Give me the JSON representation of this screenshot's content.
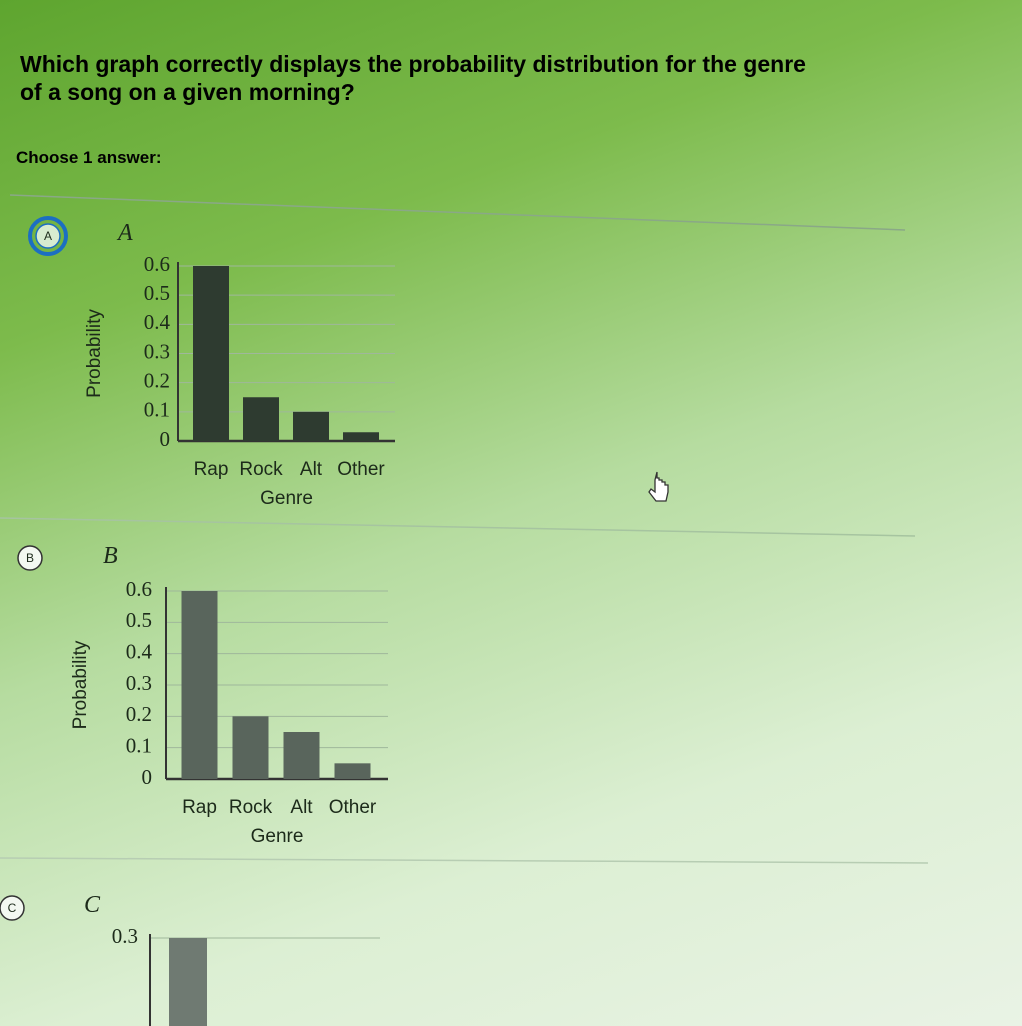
{
  "question": "Which graph correctly displays the probability distribution for the genre of a song on a given morning?",
  "instruction": "Choose 1 answer:",
  "choices": [
    {
      "letter": "A",
      "chart": {
        "type": "bar",
        "title": "A",
        "ylabel": "Probability",
        "xlabel": "Genre",
        "categories": [
          "Rap",
          "Rock",
          "Alt",
          "Other"
        ],
        "values": [
          0.6,
          0.15,
          0.1,
          0.03
        ],
        "color": "#2e3b30",
        "ylim": [
          0,
          0.6
        ],
        "yticks": [
          0,
          0.1,
          0.2,
          0.3,
          0.4,
          0.5,
          0.6
        ],
        "grid": true
      }
    },
    {
      "letter": "B",
      "chart": {
        "type": "bar",
        "title": "B",
        "ylabel": "Probability",
        "xlabel": "Genre",
        "categories": [
          "Rap",
          "Rock",
          "Alt",
          "Other"
        ],
        "values": [
          0.6,
          0.2,
          0.15,
          0.05
        ],
        "color": "#59655c",
        "ylim": [
          0,
          0.6
        ],
        "yticks": [
          0,
          0.1,
          0.2,
          0.3,
          0.4,
          0.5,
          0.6
        ],
        "grid": true
      }
    },
    {
      "letter": "C",
      "chart": {
        "type": "bar",
        "title": "C",
        "categories": [
          null
        ],
        "values": [
          0.3
        ],
        "color": "#6f7a72",
        "ylim": [
          0,
          0.3
        ],
        "yticks": [
          0.3
        ],
        "grid": true
      }
    }
  ]
}
